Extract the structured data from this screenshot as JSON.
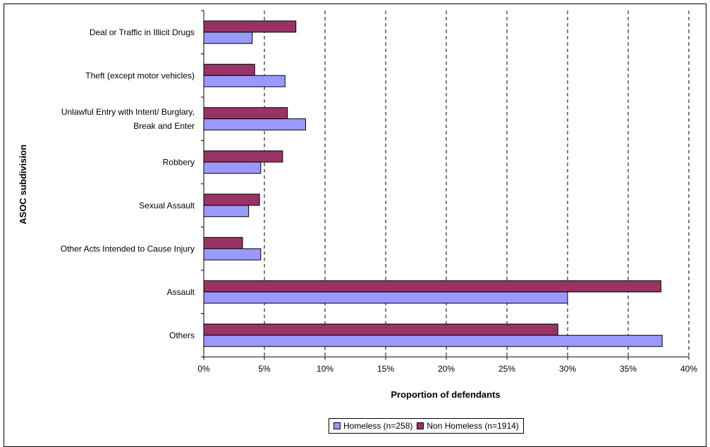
{
  "chart_data": {
    "type": "bar",
    "orientation": "horizontal",
    "categories": [
      "Deal or Traffic in Illicit Drugs",
      "Theft (except motor vehicles)",
      "Unlawful Entry with Intent/ Burglary, Break and Enter",
      "Robbery",
      "Sexual Assault",
      "Other Acts Intended to Cause Injury",
      "Assault",
      "Others"
    ],
    "category_label_lines": [
      [
        "Deal or Traffic in Illicit Drugs"
      ],
      [
        "Theft (except motor vehicles)"
      ],
      [
        "Unlawful Entry with Intent/ Burglary,",
        "Break and Enter"
      ],
      [
        "Robbery"
      ],
      [
        "Sexual Assault"
      ],
      [
        "Other Acts Intended to Cause Injury"
      ],
      [
        "Assault"
      ],
      [
        "Others"
      ]
    ],
    "series": [
      {
        "name": "Homeless (n=258)",
        "color": "#9999ff",
        "values": [
          4.0,
          6.7,
          8.4,
          4.7,
          3.7,
          4.7,
          30.0,
          37.8
        ]
      },
      {
        "name": "Non Homeless (n=1914)",
        "color": "#993366",
        "values": [
          7.6,
          4.2,
          6.9,
          6.5,
          4.6,
          3.2,
          37.7,
          29.2
        ]
      }
    ],
    "xlabel": "Proportion of defendants",
    "ylabel": "ASOC subdivision",
    "xlim": [
      0,
      40
    ],
    "xticks": [
      "0%",
      "5%",
      "10%",
      "15%",
      "20%",
      "25%",
      "30%",
      "35%",
      "40%"
    ],
    "grid": "vertical dashed",
    "legend_position": "bottom"
  }
}
